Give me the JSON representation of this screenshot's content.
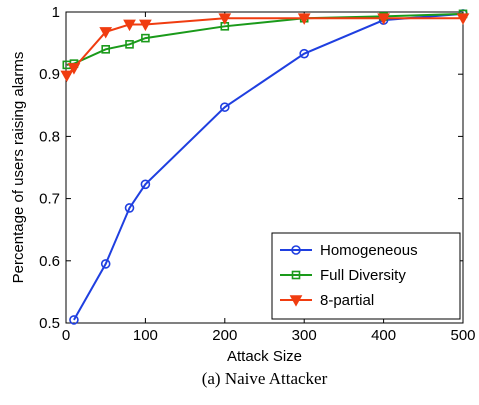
{
  "caption": "(a) Naive Attacker",
  "chart_data": {
    "type": "line",
    "xlabel": "Attack Size",
    "ylabel": "Percentage of users raising alarms",
    "xlim": [
      0,
      500
    ],
    "ylim": [
      0.5,
      1
    ],
    "xticks": [
      0,
      100,
      200,
      300,
      400,
      500
    ],
    "yticks": [
      0.5,
      0.6,
      0.7,
      0.8,
      0.9,
      1
    ],
    "xtick_labels": [
      "0",
      "100",
      "200",
      "300",
      "400",
      "500"
    ],
    "ytick_labels": [
      "0.5",
      "0.6",
      "0.7",
      "0.8",
      "0.9",
      "1"
    ],
    "grid": false,
    "legend_position": "bottom-right",
    "series": [
      {
        "name": "Homogeneous",
        "color": "#1f3fe0",
        "marker": "circle",
        "x": [
          10,
          50,
          80,
          100,
          200,
          300,
          400,
          500
        ],
        "y": [
          0.505,
          0.595,
          0.685,
          0.723,
          0.847,
          0.933,
          0.987,
          0.997
        ]
      },
      {
        "name": "Full Diversity",
        "color": "#1a9a1a",
        "marker": "square",
        "x": [
          1,
          10,
          50,
          80,
          100,
          200,
          300,
          400,
          500
        ],
        "y": [
          0.915,
          0.917,
          0.94,
          0.948,
          0.958,
          0.977,
          0.99,
          0.993,
          0.997
        ]
      },
      {
        "name": "8-partial",
        "color": "#f03c10",
        "marker": "triangle-down",
        "x": [
          1,
          10,
          50,
          80,
          100,
          200,
          300,
          400,
          500
        ],
        "y": [
          0.898,
          0.91,
          0.968,
          0.98,
          0.98,
          0.99,
          0.99,
          0.99,
          0.99
        ]
      }
    ]
  }
}
